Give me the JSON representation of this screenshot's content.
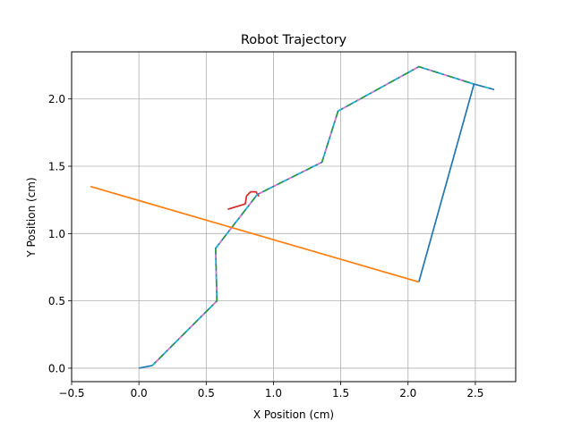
{
  "chart_data": {
    "type": "line",
    "title": "Robot Trajectory",
    "xlabel": "X Position (cm)",
    "ylabel": "Y Position (cm)",
    "xlim": [
      -0.5,
      2.8
    ],
    "ylim": [
      -0.1,
      2.35
    ],
    "xticks": [
      -0.5,
      0.0,
      0.5,
      1.0,
      1.5,
      2.0,
      2.5
    ],
    "xtick_labels": [
      "−0.5",
      "0.0",
      "0.5",
      "1.0",
      "1.5",
      "2.0",
      "2.5"
    ],
    "yticks": [
      0.0,
      0.5,
      1.0,
      1.5,
      2.0
    ],
    "ytick_labels": [
      "0.0",
      "0.5",
      "1.0",
      "1.5",
      "2.0"
    ],
    "grid": true,
    "legend": "none",
    "series": [
      {
        "color": "#1f77b4",
        "points": [
          [
            0.0,
            0.0
          ],
          [
            0.1,
            0.02
          ],
          [
            0.58,
            0.5
          ],
          [
            0.57,
            0.89
          ],
          [
            0.88,
            1.29
          ],
          [
            1.36,
            1.53
          ],
          [
            1.48,
            1.91
          ],
          [
            2.08,
            2.24
          ],
          [
            2.49,
            2.11
          ],
          [
            2.64,
            2.07
          ]
        ]
      },
      {
        "color": "#1f77b4",
        "points": [
          [
            2.49,
            2.11
          ],
          [
            2.08,
            0.64
          ]
        ]
      },
      {
        "color": "#ff7f0e",
        "points": [
          [
            2.08,
            0.64
          ],
          [
            -0.36,
            1.35
          ]
        ]
      },
      {
        "color": "#d62728",
        "points": [
          [
            0.66,
            1.18
          ],
          [
            0.79,
            1.22
          ],
          [
            0.8,
            1.28
          ],
          [
            0.83,
            1.31
          ],
          [
            0.87,
            1.31
          ],
          [
            0.89,
            1.28
          ],
          [
            0.88,
            1.29
          ]
        ]
      },
      {
        "color": "#2ca02c",
        "dashed": true,
        "points": [
          [
            0.1,
            0.02
          ],
          [
            0.58,
            0.5
          ],
          [
            0.57,
            0.89
          ],
          [
            0.88,
            1.29
          ],
          [
            1.36,
            1.53
          ],
          [
            1.48,
            1.91
          ],
          [
            2.08,
            2.24
          ],
          [
            2.49,
            2.11
          ]
        ]
      },
      {
        "color": "#e377c2",
        "dashed": true,
        "points": [
          [
            0.1,
            0.02
          ],
          [
            0.58,
            0.5
          ],
          [
            0.57,
            0.89
          ],
          [
            0.88,
            1.29
          ],
          [
            1.36,
            1.53
          ],
          [
            1.48,
            1.91
          ],
          [
            2.08,
            2.24
          ],
          [
            2.49,
            2.11
          ]
        ]
      },
      {
        "color": "#17becf",
        "dashed": true,
        "points": [
          [
            0.1,
            0.02
          ],
          [
            0.58,
            0.5
          ],
          [
            0.57,
            0.89
          ],
          [
            0.88,
            1.29
          ],
          [
            1.36,
            1.53
          ],
          [
            1.48,
            1.91
          ],
          [
            2.08,
            2.24
          ],
          [
            2.49,
            2.11
          ],
          [
            2.64,
            2.07
          ]
        ]
      }
    ]
  }
}
